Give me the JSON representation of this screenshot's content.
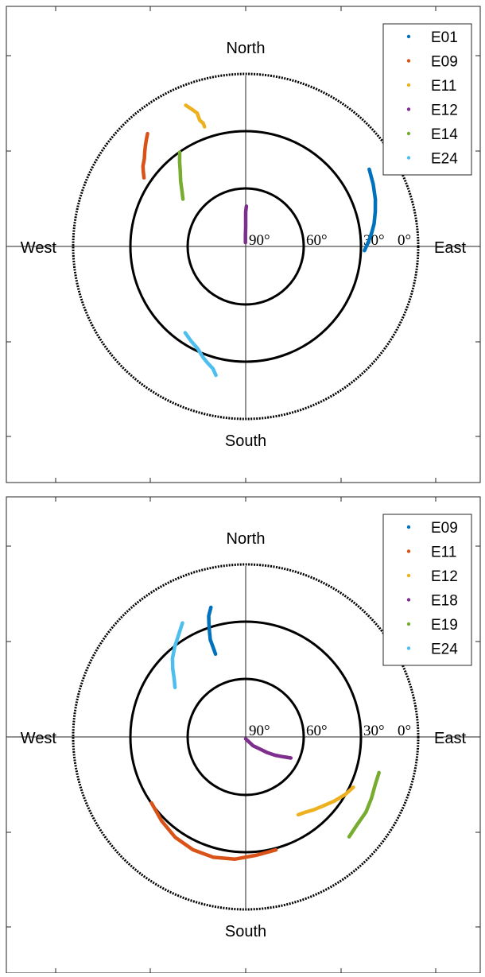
{
  "chart_data": [
    {
      "type": "scatter",
      "projection": "polar-skyplot",
      "directions": {
        "north": "North",
        "south": "South",
        "east": "East",
        "west": "West"
      },
      "ring_labels": [
        "90°",
        "60°",
        "30°",
        "0°"
      ],
      "elevation_rings_deg": [
        60,
        30,
        0
      ],
      "legend_placement": "top-right",
      "series": [
        {
          "name": "E01",
          "color": "#0072BD",
          "points": [
            [
              14,
              58
            ],
            [
              16,
              64
            ],
            [
              18,
              70
            ],
            [
              20,
              75
            ],
            [
              22,
              80
            ],
            [
              24,
              84
            ],
            [
              26,
              88
            ],
            [
              28,
              92
            ]
          ]
        },
        {
          "name": "E09",
          "color": "#D95319",
          "points": [
            [
              12,
              319
            ],
            [
              14,
              317
            ],
            [
              16,
              315
            ],
            [
              18,
              313
            ],
            [
              20,
              311
            ],
            [
              22,
              308
            ],
            [
              24,
              306
            ],
            [
              26,
              304
            ]
          ]
        },
        {
          "name": "E11",
          "color": "#EDB120",
          "points": [
            [
              24,
              341
            ],
            [
              22,
              341
            ],
            [
              20,
              340
            ],
            [
              18,
              340
            ],
            [
              16,
              340
            ],
            [
              14,
              339
            ],
            [
              12,
              338
            ],
            [
              10,
              337
            ]
          ]
        },
        {
          "name": "E12",
          "color": "#7E2F8E",
          "points": [
            [
              88,
              356
            ],
            [
              84,
              359
            ],
            [
              80,
              360
            ],
            [
              76,
              360
            ],
            [
              72,
              0
            ],
            [
              69,
              1
            ]
          ]
        },
        {
          "name": "E14",
          "color": "#77AC30",
          "points": [
            [
              30,
              325
            ],
            [
              34,
              322
            ],
            [
              38,
              319
            ],
            [
              42,
              315
            ],
            [
              46,
              311
            ],
            [
              49,
              307
            ]
          ]
        },
        {
          "name": "E24",
          "color": "#4DBEEE",
          "points": [
            [
              35,
              215
            ],
            [
              33,
              210
            ],
            [
              31,
              205
            ],
            [
              28,
              201
            ],
            [
              26,
              198
            ],
            [
              24,
              195
            ],
            [
              21,
              193
            ]
          ]
        }
      ]
    },
    {
      "type": "scatter",
      "projection": "polar-skyplot",
      "directions": {
        "north": "North",
        "south": "South",
        "east": "East",
        "west": "West"
      },
      "ring_labels": [
        "90°",
        "60°",
        "30°",
        "0°"
      ],
      "elevation_rings_deg": [
        60,
        30,
        0
      ],
      "legend_placement": "top-right",
      "series": [
        {
          "name": "E09",
          "color": "#0072BD",
          "points": [
            [
              20,
              345
            ],
            [
              24,
              343
            ],
            [
              28,
              342
            ],
            [
              32,
              341
            ],
            [
              36,
              340
            ],
            [
              40,
              340
            ],
            [
              44,
              340
            ]
          ]
        },
        {
          "name": "E11",
          "color": "#D95319",
          "points": [
            [
              30,
              235
            ],
            [
              28,
              225
            ],
            [
              26,
              215
            ],
            [
              25,
              205
            ],
            [
              25,
              195
            ],
            [
              26,
              185
            ],
            [
              28,
              175
            ],
            [
              29,
              165
            ]
          ]
        },
        {
          "name": "E12",
          "color": "#EDB120",
          "points": [
            [
              28,
              115
            ],
            [
              30,
              120
            ],
            [
              33,
              126
            ],
            [
              36,
              132
            ],
            [
              38,
              137
            ],
            [
              40,
              142
            ],
            [
              41,
              146
            ]
          ]
        },
        {
          "name": "E18",
          "color": "#7E2F8E",
          "points": [
            [
              89,
              180
            ],
            [
              84,
              140
            ],
            [
              80,
              130
            ],
            [
              76,
              126
            ],
            [
              72,
              122
            ],
            [
              68,
              118
            ],
            [
              64,
              115
            ]
          ]
        },
        {
          "name": "E19",
          "color": "#77AC30",
          "points": [
            [
              18,
              105
            ],
            [
              18,
              110
            ],
            [
              17,
              116
            ],
            [
              16,
              122
            ],
            [
              16,
              128
            ],
            [
              15,
              134
            ]
          ]
        },
        {
          "name": "E24",
          "color": "#4DBEEE",
          "points": [
            [
              22,
              331
            ],
            [
              26,
              327
            ],
            [
              30,
              322
            ],
            [
              34,
              317
            ],
            [
              38,
              313
            ],
            [
              42,
              309
            ],
            [
              45,
              305
            ]
          ]
        }
      ]
    }
  ]
}
